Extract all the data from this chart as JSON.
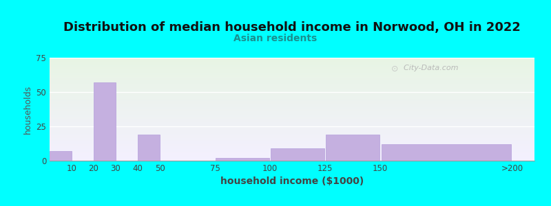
{
  "title": "Distribution of median household income in Norwood, OH in 2022",
  "subtitle": "Asian residents",
  "xlabel": "household income ($1000)",
  "ylabel": "households",
  "background_color": "#00FFFF",
  "bar_color": "#c5b0e0",
  "bar_edge_color": "#b39ddb",
  "tick_labels": [
    "10",
    "20",
    "30",
    "40",
    "50",
    "75",
    "100",
    "125",
    "150",
    ">200"
  ],
  "tick_positions": [
    10,
    20,
    30,
    40,
    50,
    75,
    100,
    125,
    150,
    210
  ],
  "bar_lefts": [
    0,
    10,
    20,
    30,
    40,
    50,
    75,
    100,
    125,
    150
  ],
  "bar_widths": [
    10,
    10,
    10,
    10,
    10,
    25,
    25,
    25,
    25,
    60
  ],
  "bar_values": [
    7,
    0,
    57,
    0,
    19,
    0,
    2,
    9,
    19,
    12
  ],
  "xlim": [
    0,
    220
  ],
  "ylim": [
    0,
    75
  ],
  "yticks": [
    0,
    25,
    50,
    75
  ],
  "watermark": "City-Data.com",
  "title_fontsize": 13,
  "subtitle_fontsize": 10,
  "xlabel_fontsize": 10,
  "ylabel_fontsize": 9
}
